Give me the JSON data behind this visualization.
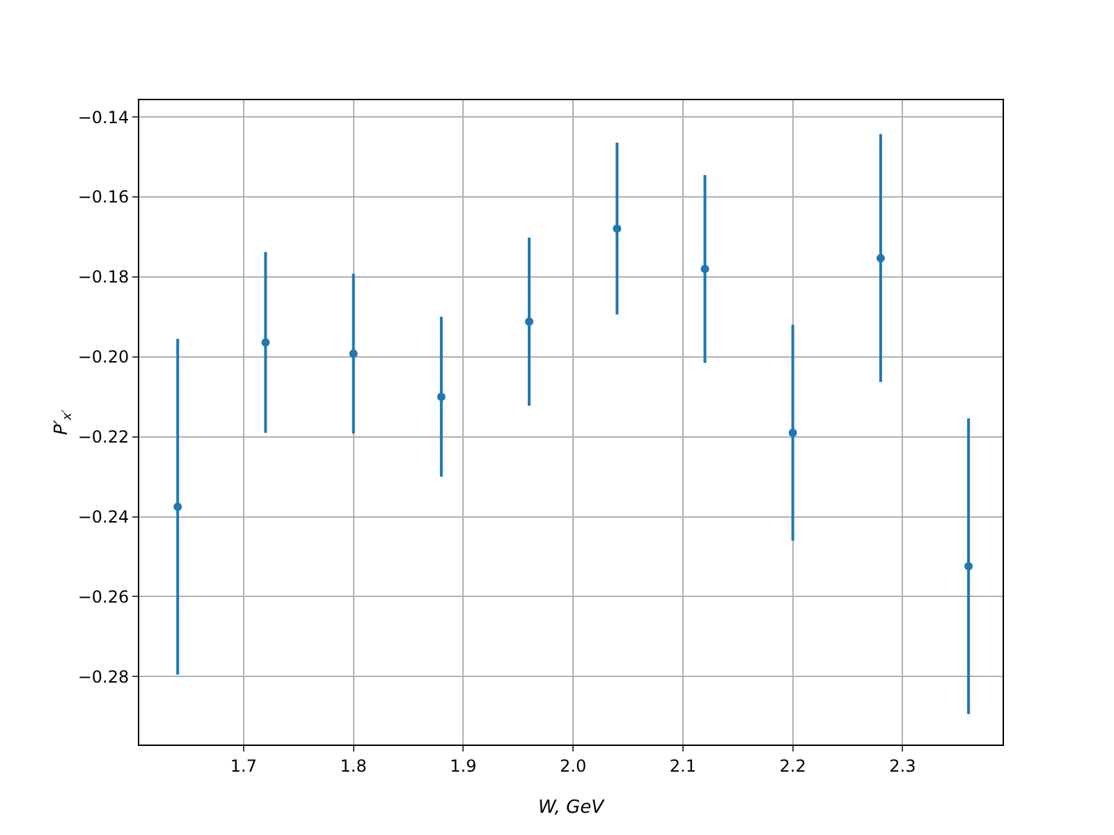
{
  "chart_data": {
    "type": "scatter",
    "xlabel": "W, GeV",
    "ylabel": "P′$_{x′}$",
    "x": [
      1.64,
      1.72,
      1.8,
      1.88,
      1.96,
      2.04,
      2.12,
      2.2,
      2.28,
      2.36
    ],
    "series": [
      {
        "color": "#1f77b4",
        "values": [
          -0.2375,
          -0.1964,
          -0.1992,
          -0.21,
          -0.1912,
          -0.1679,
          -0.178,
          -0.219,
          -0.1753,
          -0.2524
        ],
        "errors": [
          0.042,
          0.0226,
          0.02,
          0.02,
          0.021,
          0.0215,
          0.0235,
          0.027,
          0.031,
          0.037
        ]
      }
    ],
    "xlim": [
      1.605,
      2.391
    ],
    "xticks": [
      {
        "value": 1.7,
        "label": "1.7"
      },
      {
        "value": 1.8,
        "label": "1.8"
      },
      {
        "value": 1.9,
        "label": "1.9"
      },
      {
        "value": 2.0,
        "label": "2.0"
      },
      {
        "value": 2.1,
        "label": "2.1"
      },
      {
        "value": 2.2,
        "label": "2.2"
      },
      {
        "value": 2.3,
        "label": "2.3"
      }
    ],
    "ylim": [
      -0.297,
      -0.1358
    ],
    "yticks": [
      {
        "value": -0.28,
        "label": "−0.28"
      },
      {
        "value": -0.26,
        "label": "−0.26"
      },
      {
        "value": -0.24,
        "label": "−0.24"
      },
      {
        "value": -0.22,
        "label": "−0.22"
      },
      {
        "value": -0.2,
        "label": "−0.20"
      },
      {
        "value": -0.18,
        "label": "−0.18"
      },
      {
        "value": -0.16,
        "label": "−0.16"
      },
      {
        "value": -0.14,
        "label": "−0.14"
      }
    ],
    "grid": true,
    "marker": "circle"
  }
}
